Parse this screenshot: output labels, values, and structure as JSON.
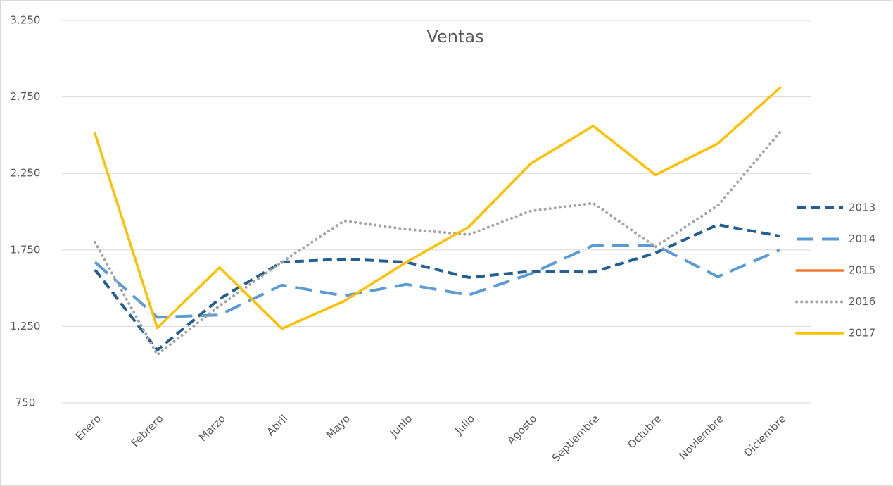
{
  "chart_data": {
    "type": "line",
    "title": "Ventas",
    "categories": [
      "Enero",
      "Febrero",
      "Marzo",
      "Abril",
      "Mayo",
      "Junio",
      "Julio",
      "Agosto",
      "Septiembre",
      "Octubre",
      "Noviembre",
      "Diciembre"
    ],
    "ylim": [
      750,
      3250
    ],
    "yticks": [
      750,
      {
        "value": 1250,
        "label": "1.250"
      },
      {
        "value": 1750,
        "label": "1.750"
      },
      {
        "value": 2250,
        "label": "2.250"
      },
      {
        "value": 2750,
        "label": "2.750"
      },
      {
        "value": 3250,
        "label": "3.250"
      }
    ],
    "grid": true,
    "legend": "right",
    "series": [
      {
        "name": "2013",
        "color": "#255e91",
        "dash": "dashed",
        "values": [
          1620,
          1095,
          1430,
          1670,
          1690,
          1670,
          1570,
          1610,
          1605,
          1730,
          1915,
          1840
        ]
      },
      {
        "name": "2014",
        "color": "#5b9bd5",
        "dash": "long-dash",
        "values": [
          1670,
          1310,
          1325,
          1520,
          1450,
          1525,
          1455,
          1595,
          1780,
          1780,
          1575,
          1750
        ]
      },
      {
        "name": "2015",
        "color": "#ed7d31",
        "dash": "solid",
        "values": [
          null,
          null,
          null,
          null,
          null,
          null,
          null,
          null,
          null,
          null,
          null,
          null
        ]
      },
      {
        "name": "2016",
        "color": "#a5a5a5",
        "dash": "dotted",
        "values": [
          1800,
          1065,
          1385,
          1670,
          1940,
          1885,
          1850,
          2005,
          2055,
          1770,
          2040,
          2520
        ]
      },
      {
        "name": "2017",
        "color": "#ffc000",
        "dash": "solid",
        "values": [
          2510,
          1240,
          1635,
          1235,
          1415,
          1670,
          1900,
          2315,
          2560,
          2240,
          2445,
          2810
        ]
      }
    ]
  }
}
